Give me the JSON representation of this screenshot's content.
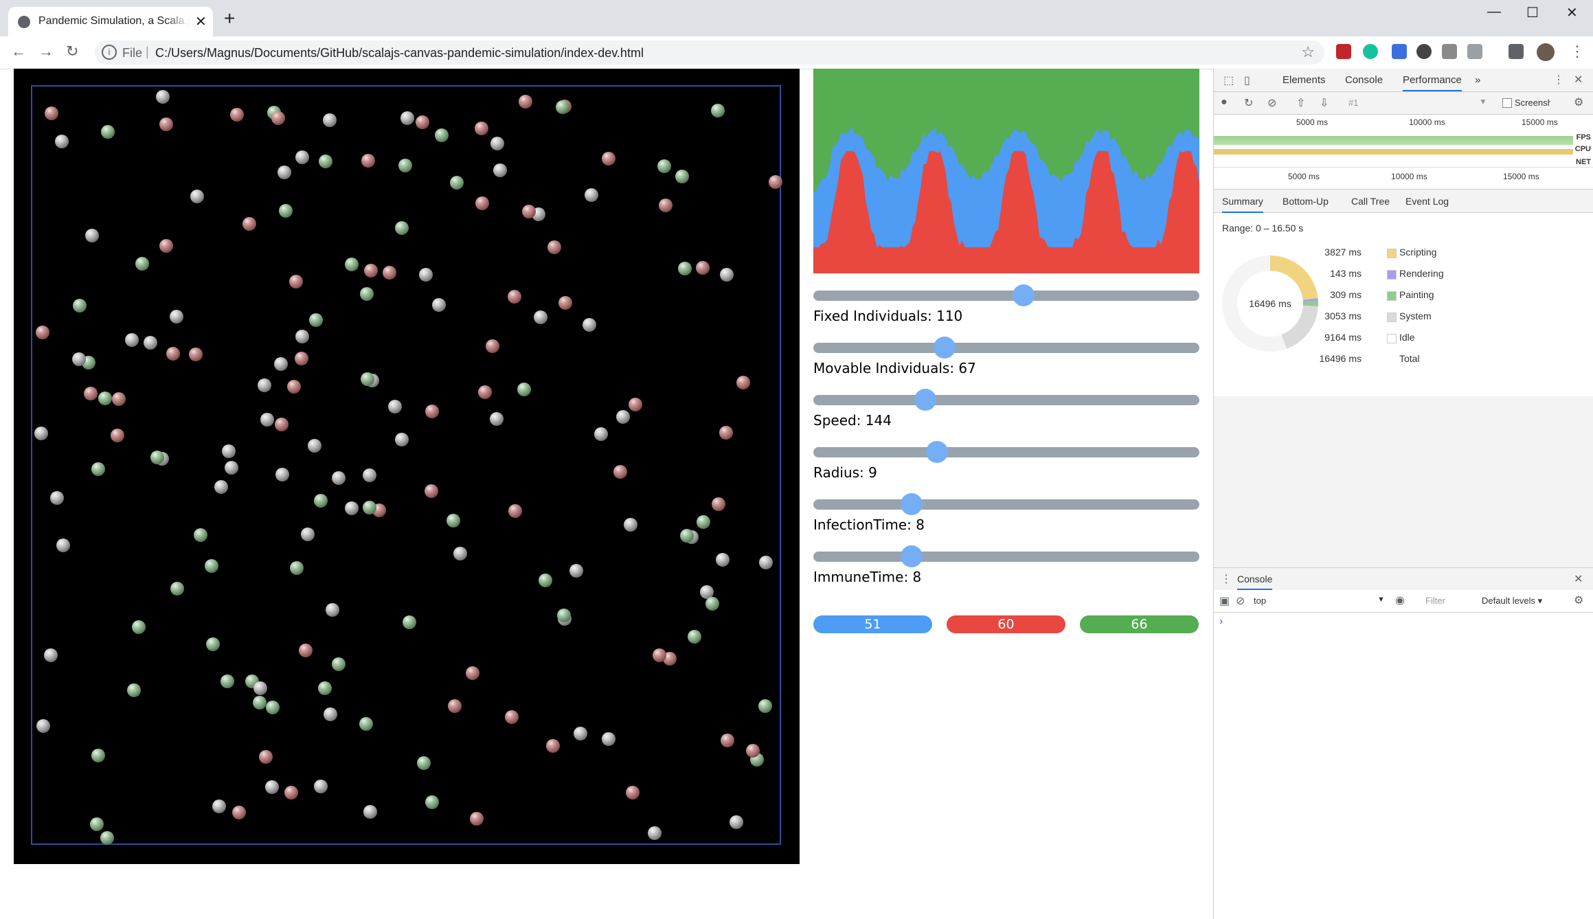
{
  "browser": {
    "tab_title": "Pandemic Simulation, a Scala.js canvas demo",
    "new_tab": "+",
    "tab_close": "✕",
    "window_controls": {
      "minimize": "—",
      "maximize": "☐",
      "close": "✕"
    },
    "address": {
      "scheme_label": "File",
      "url": "C:/Users/Magnus/Documents/GitHub/scalajs-canvas-pandemic-simulation/index-dev.html"
    }
  },
  "controls": [
    {
      "label": "Fixed Individuals: 110",
      "position": 0.545
    },
    {
      "label": "Movable Individuals: 67",
      "position": 0.34
    },
    {
      "label": "Speed: 144",
      "position": 0.29
    },
    {
      "label": "Radius: 9",
      "position": 0.32
    },
    {
      "label": "InfectionTime: 8",
      "position": 0.255
    },
    {
      "label": "ImmuneTime: 8",
      "position": 0.255
    }
  ],
  "counts": [
    {
      "value": "51",
      "color": "#4e9cf3"
    },
    {
      "value": "60",
      "color": "#e84840"
    },
    {
      "value": "66",
      "color": "#54ad51"
    }
  ],
  "colors": {
    "infected": "#e84840",
    "susceptible": "#4e9cf3",
    "immune": "#57ad52"
  },
  "devtools": {
    "tabs": [
      "Elements",
      "Console",
      "Performance"
    ],
    "more": "»",
    "profile_select": "#1",
    "screenshots_label": "Screensh",
    "overview_ticks": [
      "5000 ms",
      "10000 ms",
      "15000 ms"
    ],
    "overview_ticks_lower": [
      "5000 ms",
      "10000 ms",
      "15000 ms"
    ],
    "overview_labels": {
      "fps": "FPS",
      "cpu": "CPU",
      "net": "NET"
    },
    "subtabs": [
      "Summary",
      "Bottom-Up",
      "Call Tree",
      "Event Log"
    ],
    "range": "Range: 0 – 16.50 s",
    "total_center": "16496 ms",
    "summary": [
      {
        "value": "3827 ms",
        "name": "Scripting",
        "color": "#f2d480",
        "ms": 3827
      },
      {
        "value": "143 ms",
        "name": "Rendering",
        "color": "#a99cf0",
        "ms": 143
      },
      {
        "value": "309 ms",
        "name": "Painting",
        "color": "#8fcf8c",
        "ms": 309
      },
      {
        "value": "3053 ms",
        "name": "System",
        "color": "#dadada",
        "ms": 3053
      },
      {
        "value": "9164 ms",
        "name": "Idle",
        "color": "#ffffff",
        "ms": 9164
      },
      {
        "value": "16496 ms",
        "name": "Total",
        "color": "",
        "ms": 16496
      }
    ],
    "console_title": "Console",
    "context": "top",
    "filter_placeholder": "Filter",
    "levels": "Default levels ▾",
    "prompt": "›"
  }
}
